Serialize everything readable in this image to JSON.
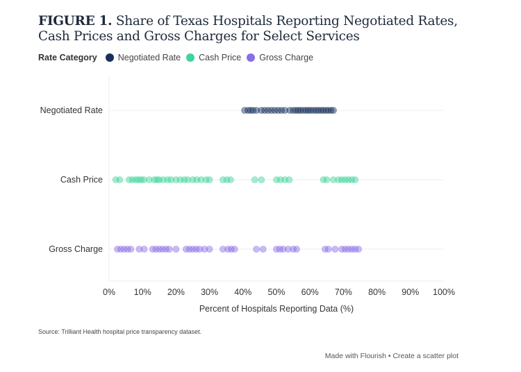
{
  "header": {
    "title_bold": "FIGURE 1.",
    "title_rest": " Share of Texas Hospitals Reporting Negotiated Rates, Cash Prices and Gross Charges for Select Services"
  },
  "legend": {
    "title": "Rate Category",
    "items": [
      {
        "label": "Negotiated Rate",
        "color": "#17305e"
      },
      {
        "label": "Cash Price",
        "color": "#3fd49b"
      },
      {
        "label": "Gross Charge",
        "color": "#8a6de9"
      }
    ]
  },
  "footer": {
    "source": "Source: Trilliant Health hospital price transparency dataset.",
    "made_with": "Made with Flourish",
    "separator": "•",
    "create": "Create a scatter plot"
  },
  "chart_data": {
    "type": "scatter",
    "xlabel": "Percent of Hospitals Reporting Data (%)",
    "xlim": [
      0,
      100
    ],
    "xticks": [
      "0%",
      "10%",
      "20%",
      "30%",
      "40%",
      "50%",
      "60%",
      "70%",
      "80%",
      "90%",
      "100%"
    ],
    "categories": [
      "Negotiated Rate",
      "Cash Price",
      "Gross Charge"
    ],
    "series": [
      {
        "name": "Negotiated Rate",
        "color": "#17305e",
        "values": [
          40.5,
          41.5,
          42.3,
          43,
          44,
          45.5,
          46.5,
          47.5,
          48.5,
          49.5,
          50.5,
          51.5,
          52.5,
          54,
          55,
          55.8,
          56.5,
          57.2,
          58,
          58.8,
          59.5,
          60.2,
          61,
          61.8,
          62.5,
          63.3,
          64,
          64.8,
          65.5,
          66.3,
          67
        ]
      },
      {
        "name": "Cash Price",
        "color": "#3fd49b",
        "values": [
          2,
          3.2,
          6,
          7,
          8,
          8.8,
          9.6,
          10.4,
          12,
          13.5,
          14.3,
          15,
          16.2,
          17.5,
          18.5,
          20,
          21.3,
          22.5,
          23.5,
          25,
          26.2,
          27.5,
          29,
          30,
          34,
          35.2,
          36.3,
          43.5,
          45.5,
          50,
          51.2,
          52.5,
          53.8,
          64,
          65,
          67,
          68.5,
          69.5,
          70.5,
          71.5,
          72.5,
          73.5
        ]
      },
      {
        "name": "Gross Charge",
        "color": "#8a6de9",
        "values": [
          2.5,
          3.5,
          4.5,
          5.5,
          6.5,
          9,
          10.5,
          13,
          14,
          15,
          16,
          17,
          18,
          20,
          23,
          24,
          25,
          26,
          27,
          28.5,
          30,
          34,
          35.5,
          36.5,
          37.5,
          44,
          46,
          50,
          51,
          52,
          53.5,
          55,
          56,
          64.5,
          65.5,
          67.5,
          69.5,
          70.5,
          71.5,
          72.5,
          73.5,
          74.5
        ]
      }
    ]
  }
}
